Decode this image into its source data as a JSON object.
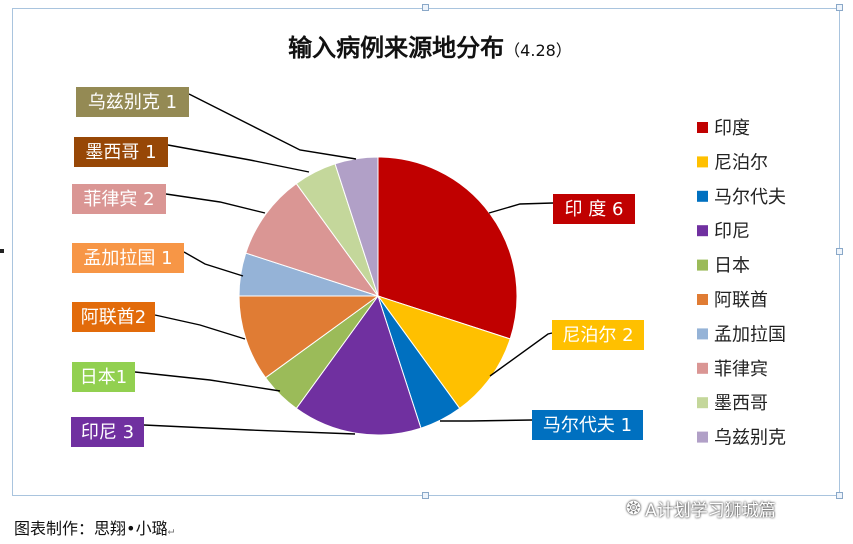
{
  "caption": "图表制作：思翔•小璐",
  "watermark": "A计划学习狮城篇",
  "chart_data": {
    "type": "pie",
    "title": "输入病例来源地分布",
    "subtitle": "（4.28）",
    "legend_position": "right",
    "slices": [
      {
        "name": "印度",
        "value": 6,
        "label": "印 度 6",
        "color": "#C00000"
      },
      {
        "name": "尼泊尔",
        "value": 2,
        "label": "尼泊尔 2",
        "color": "#FFC000"
      },
      {
        "name": "马尔代夫",
        "value": 1,
        "label": "马尔代夫 1",
        "color": "#0070C0"
      },
      {
        "name": "印尼",
        "value": 3,
        "label": "印尼 3",
        "color": "#7030A0"
      },
      {
        "name": "日本",
        "value": 1,
        "label": "日本1",
        "color": "#9BBB59"
      },
      {
        "name": "阿联酋",
        "value": 2,
        "label": "阿联酋2",
        "color": "#E07C34"
      },
      {
        "name": "孟加拉国",
        "value": 1,
        "label": "孟加拉国 1",
        "color": "#95B3D7"
      },
      {
        "name": "菲律宾",
        "value": 2,
        "label": "菲律宾 2",
        "color": "#DA9694"
      },
      {
        "name": "墨西哥",
        "value": 1,
        "label": "墨西哥 1",
        "color": "#C4D79B"
      },
      {
        "name": "乌兹别克",
        "value": 1,
        "label": "乌兹别克 1",
        "color": "#B1A0C7"
      }
    ]
  },
  "label_boxes": [
    {
      "fill": "#C00000",
      "text_color": "#ffffff"
    },
    {
      "fill": "#FFC000",
      "text_color": "#ffffff"
    },
    {
      "fill": "#0070C0",
      "text_color": "#ffffff"
    },
    {
      "fill": "#7030A0",
      "text_color": "#ffffff"
    },
    {
      "fill": "#92D050",
      "text_color": "#ffffff"
    },
    {
      "fill": "#E26B0A",
      "text_color": "#ffffff"
    },
    {
      "fill": "#F79646",
      "text_color": "#ffffff"
    },
    {
      "fill": "#DA9694",
      "text_color": "#ffffff"
    },
    {
      "fill": "#974706",
      "text_color": "#ffffff"
    },
    {
      "fill": "#948A54",
      "text_color": "#ffffff"
    }
  ]
}
